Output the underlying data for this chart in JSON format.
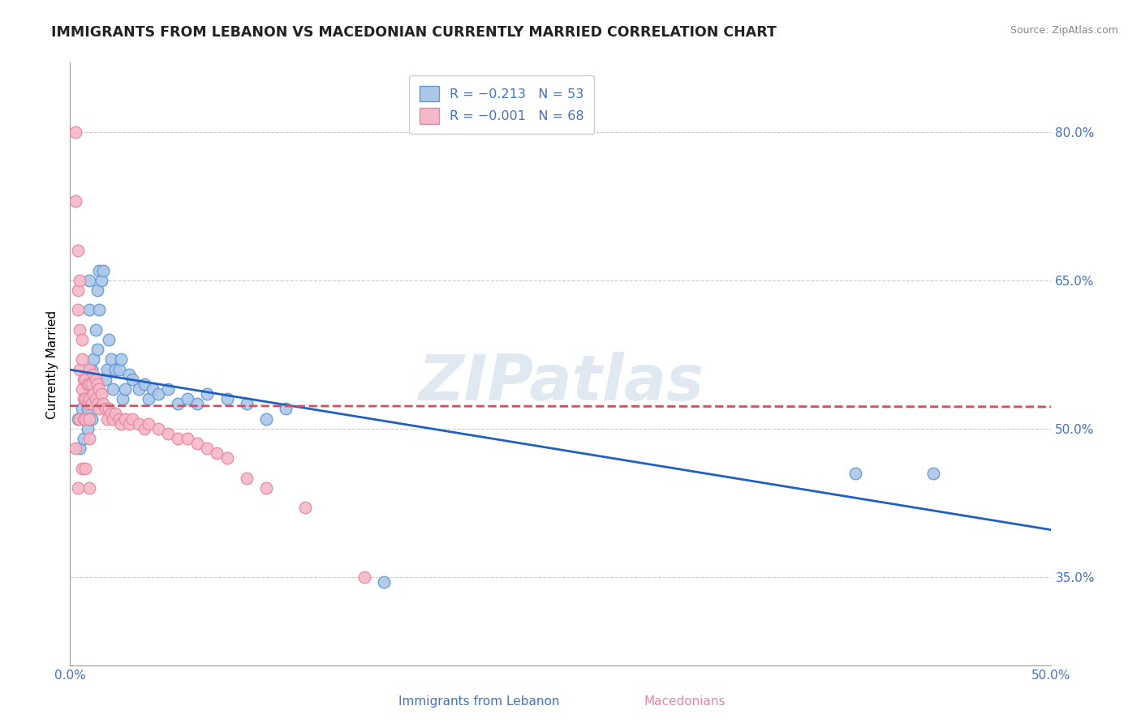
{
  "title": "IMMIGRANTS FROM LEBANON VS MACEDONIAN CURRENTLY MARRIED CORRELATION CHART",
  "source": "Source: ZipAtlas.com",
  "ylabel": "Currently Married",
  "y_ticks": [
    0.35,
    0.5,
    0.65,
    0.8
  ],
  "y_tick_labels": [
    "35.0%",
    "50.0%",
    "65.0%",
    "80.0%"
  ],
  "xmin": 0.0,
  "xmax": 0.5,
  "ymin": 0.26,
  "ymax": 0.87,
  "legend_label_blue": "R = −0.213   N = 53",
  "legend_label_pink": "R = −0.001   N = 68",
  "blue_fill": "#aec6e8",
  "blue_edge": "#5b9bd5",
  "blue_trend": "#2060c0",
  "pink_fill": "#f4b8c8",
  "pink_edge": "#e888a0",
  "pink_trend": "#d05060",
  "tick_color": "#4472c4",
  "watermark": "ZIPatlas",
  "background": "#ffffff",
  "grid_color": "#cccccc",
  "series_blue_x": [
    0.004,
    0.005,
    0.006,
    0.007,
    0.008,
    0.008,
    0.009,
    0.009,
    0.01,
    0.01,
    0.01,
    0.01,
    0.011,
    0.011,
    0.012,
    0.012,
    0.013,
    0.013,
    0.014,
    0.014,
    0.015,
    0.015,
    0.016,
    0.017,
    0.018,
    0.019,
    0.02,
    0.021,
    0.022,
    0.023,
    0.025,
    0.026,
    0.027,
    0.028,
    0.03,
    0.032,
    0.035,
    0.038,
    0.04,
    0.042,
    0.045,
    0.05,
    0.055,
    0.06,
    0.065,
    0.07,
    0.08,
    0.09,
    0.1,
    0.11,
    0.4,
    0.16,
    0.44
  ],
  "series_blue_y": [
    0.51,
    0.48,
    0.52,
    0.49,
    0.51,
    0.53,
    0.5,
    0.52,
    0.62,
    0.65,
    0.51,
    0.54,
    0.56,
    0.51,
    0.57,
    0.53,
    0.6,
    0.55,
    0.64,
    0.58,
    0.66,
    0.62,
    0.65,
    0.66,
    0.55,
    0.56,
    0.59,
    0.57,
    0.54,
    0.56,
    0.56,
    0.57,
    0.53,
    0.54,
    0.555,
    0.55,
    0.54,
    0.545,
    0.53,
    0.54,
    0.535,
    0.54,
    0.525,
    0.53,
    0.525,
    0.535,
    0.53,
    0.525,
    0.51,
    0.52,
    0.455,
    0.345,
    0.455
  ],
  "series_pink_x": [
    0.003,
    0.003,
    0.004,
    0.004,
    0.005,
    0.005,
    0.005,
    0.006,
    0.006,
    0.007,
    0.007,
    0.007,
    0.008,
    0.008,
    0.008,
    0.009,
    0.009,
    0.01,
    0.01,
    0.01,
    0.01,
    0.01,
    0.011,
    0.011,
    0.012,
    0.012,
    0.013,
    0.013,
    0.014,
    0.014,
    0.015,
    0.015,
    0.016,
    0.017,
    0.018,
    0.019,
    0.02,
    0.021,
    0.022,
    0.023,
    0.025,
    0.026,
    0.028,
    0.03,
    0.032,
    0.035,
    0.038,
    0.04,
    0.045,
    0.05,
    0.055,
    0.06,
    0.065,
    0.07,
    0.075,
    0.08,
    0.09,
    0.1,
    0.12,
    0.15,
    0.003,
    0.004,
    0.004,
    0.005,
    0.006,
    0.006,
    0.008,
    0.01
  ],
  "series_pink_y": [
    0.8,
    0.73,
    0.68,
    0.64,
    0.6,
    0.56,
    0.51,
    0.54,
    0.57,
    0.55,
    0.53,
    0.51,
    0.55,
    0.53,
    0.51,
    0.545,
    0.525,
    0.56,
    0.545,
    0.53,
    0.51,
    0.49,
    0.545,
    0.525,
    0.555,
    0.535,
    0.55,
    0.53,
    0.545,
    0.525,
    0.54,
    0.52,
    0.535,
    0.525,
    0.52,
    0.51,
    0.52,
    0.515,
    0.51,
    0.515,
    0.51,
    0.505,
    0.51,
    0.505,
    0.51,
    0.505,
    0.5,
    0.505,
    0.5,
    0.495,
    0.49,
    0.49,
    0.485,
    0.48,
    0.475,
    0.47,
    0.45,
    0.44,
    0.42,
    0.35,
    0.48,
    0.62,
    0.44,
    0.65,
    0.59,
    0.46,
    0.46,
    0.44
  ]
}
